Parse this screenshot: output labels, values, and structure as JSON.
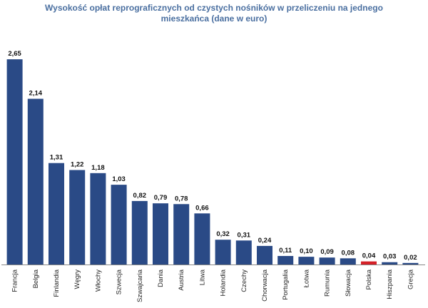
{
  "chart_data": {
    "type": "bar",
    "title_line1": "Wysokość opłat reprograficznych od czystych nośników w przeliczeniu na jednego",
    "title_line2": "mieszkańca (dane w euro)",
    "xlabel": "",
    "ylabel": "",
    "ylim": [
      0,
      2.9
    ],
    "grid": false,
    "categories": [
      "Francja",
      "Belgia",
      "Finlandia",
      "Węgry",
      "Włochy",
      "Szwecja",
      "Szwajcaria",
      "Dania",
      "Austria",
      "Litwa",
      "Holandia",
      "Czechy",
      "Chorwacja",
      "Portugalia",
      "Łotwa",
      "Rumunia",
      "Słowacja",
      "Polska",
      "Hiszpania",
      "Grecja"
    ],
    "values": [
      2.65,
      2.14,
      1.31,
      1.22,
      1.18,
      1.03,
      0.82,
      0.79,
      0.78,
      0.66,
      0.32,
      0.31,
      0.24,
      0.11,
      0.1,
      0.09,
      0.08,
      0.04,
      0.03,
      0.02
    ],
    "value_labels": [
      "2,65",
      "2,14",
      "1,31",
      "1,22",
      "1,18",
      "1,03",
      "0,82",
      "0,79",
      "0,78",
      "0,66",
      "0,32",
      "0,31",
      "0,24",
      "0,11",
      "0,10",
      "0,09",
      "0,08",
      "0,04",
      "0,03",
      "0,02"
    ],
    "highlight_category": "Polska",
    "colors": {
      "bar": "#2a4a86",
      "highlight": "#d42027",
      "axis": "#888888"
    }
  }
}
